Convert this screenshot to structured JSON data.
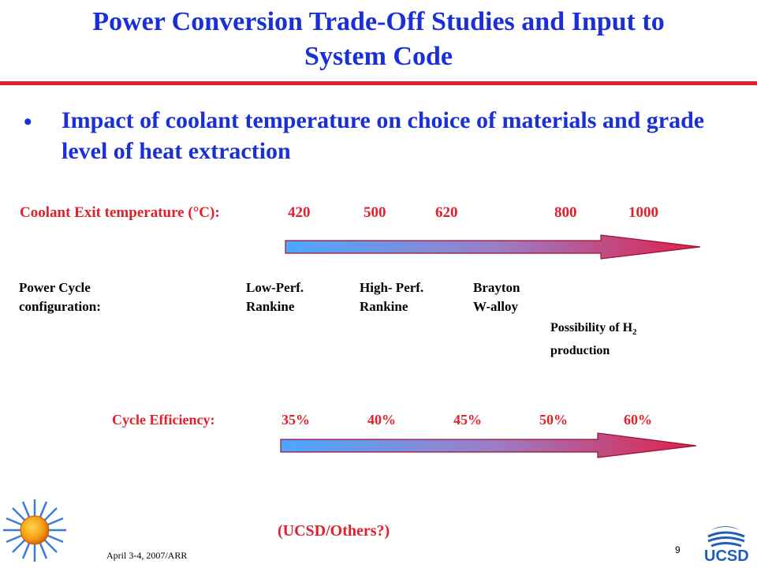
{
  "slide": {
    "title_line1": "Power Conversion Trade-Off Studies and Input to",
    "title_line2": "System Code",
    "bullet_marker": "•",
    "bullet_text": "Impact of coolant temperature on choice of materials and grade level of heat extraction",
    "coolant_label": "Coolant Exit temperature (°C):",
    "temperatures": [
      "420",
      "500",
      "620",
      "800",
      "1000"
    ],
    "power_cycle_label_line1": "Power Cycle",
    "power_cycle_label_line2": "configuration:",
    "configs": [
      {
        "line1": "Low-Perf.",
        "line2": "Rankine"
      },
      {
        "line1": "High- Perf.",
        "line2": "Rankine"
      },
      {
        "line1": "Brayton",
        "line2": "W-alloy"
      }
    ],
    "h2_line1": "Possibility of H",
    "h2_sub": "2",
    "h2_line2": "production",
    "efficiency_label": "Cycle Efficiency:",
    "efficiencies": [
      "35%",
      "40%",
      "45%",
      "50%",
      "60%"
    ],
    "ucsd_note": "(UCSD/Others?)",
    "footer_date": "April 3-4, 2007/ARR",
    "page_number": "9",
    "logo_text": "UCSD",
    "colors": {
      "title": "#1a2fd6",
      "accent": "#e0202a",
      "arrow_start": "#4da6ff",
      "arrow_end": "#e0204a"
    }
  }
}
